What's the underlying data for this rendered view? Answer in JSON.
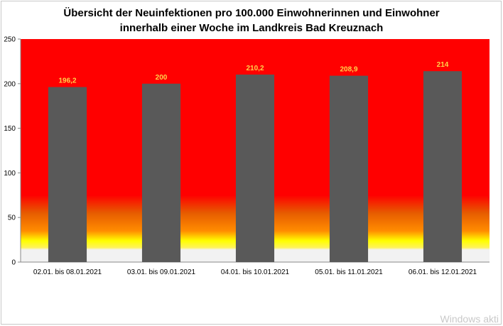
{
  "chart_data": {
    "type": "bar",
    "title_line1": "Übersicht der Neuinfektionen pro 100.000 Einwohnerinnen und Einwohner",
    "title_line2": "innerhalb einer Woche im Landkreis Bad Kreuznach",
    "categories": [
      "02.01. bis 08.01.2021",
      "03.01. bis 09.01.2021",
      "04.01. bis 10.01.2021",
      "05.01. bis 11.01.2021",
      "06.01. bis 12.01.2021"
    ],
    "values": [
      196.2,
      200,
      210.2,
      208.9,
      214
    ],
    "value_labels": [
      "196,2",
      "200",
      "210,2",
      "208,9",
      "214"
    ],
    "ylim": [
      0,
      250
    ],
    "yticks": [
      0,
      50,
      100,
      150,
      200,
      250
    ],
    "grid": false,
    "colors": {
      "bar": "#595959",
      "data_label": "#ffd24a",
      "background_red": "#ff0000",
      "background_orange": "#e65c00",
      "background_yellow": "#ffff00",
      "background_low": "#f2f2f2"
    }
  },
  "overlay": {
    "watermark": "Windows akti"
  }
}
